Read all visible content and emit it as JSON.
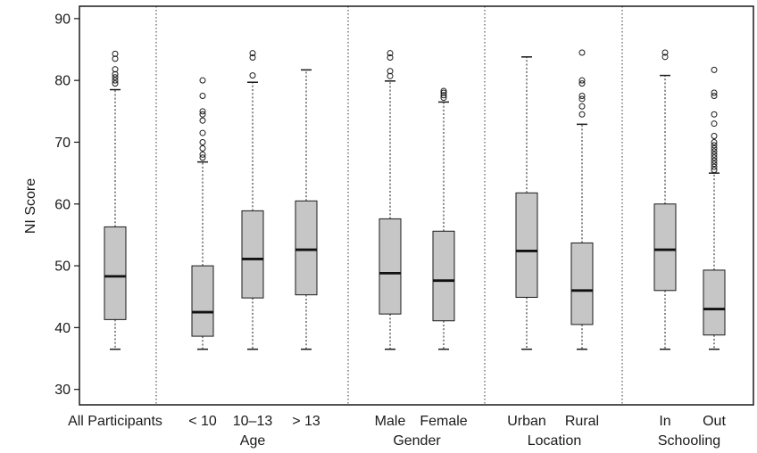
{
  "chart_data": {
    "type": "boxplot",
    "ylabel": "NI Score",
    "ylim": [
      27.5,
      92
    ],
    "yticks": [
      30,
      40,
      50,
      60,
      70,
      80,
      90
    ],
    "grid": false,
    "box_fill": "#c6c6c6",
    "groups": [
      {
        "label": "",
        "boxes": [
          "All Participants"
        ]
      },
      {
        "label": "Age",
        "boxes": [
          "< 10",
          "10–13",
          "> 13"
        ]
      },
      {
        "label": "Gender",
        "boxes": [
          "Male",
          "Female"
        ]
      },
      {
        "label": "Location",
        "boxes": [
          "Urban",
          "Rural"
        ]
      },
      {
        "label": "Schooling",
        "boxes": [
          "In",
          "Out"
        ]
      }
    ],
    "boxes": [
      {
        "label": "All Participants",
        "min": 36.5,
        "q1": 41.3,
        "median": 48.3,
        "q3": 56.3,
        "max": 78.5,
        "outliers": [
          79.5,
          80.0,
          80.5,
          81.0,
          81.8,
          83.5,
          84.3
        ]
      },
      {
        "label": "< 10",
        "min": 36.5,
        "q1": 38.6,
        "median": 42.5,
        "q3": 50.0,
        "max": 66.8,
        "outliers": [
          67.5,
          68.0,
          69.0,
          70.0,
          71.5,
          73.5,
          74.5,
          75.0,
          77.5,
          80.0
        ]
      },
      {
        "label": "10–13",
        "min": 36.5,
        "q1": 44.8,
        "median": 51.1,
        "q3": 58.9,
        "max": 79.7,
        "outliers": [
          80.8,
          83.7,
          84.4
        ]
      },
      {
        "label": "> 13",
        "min": 36.5,
        "q1": 45.3,
        "median": 52.6,
        "q3": 60.5,
        "max": 81.7,
        "outliers": []
      },
      {
        "label": "Male",
        "min": 36.5,
        "q1": 42.2,
        "median": 48.8,
        "q3": 57.6,
        "max": 79.9,
        "outliers": [
          80.7,
          81.5,
          83.7,
          84.4
        ]
      },
      {
        "label": "Female",
        "min": 36.5,
        "q1": 41.1,
        "median": 47.6,
        "q3": 55.6,
        "max": 76.5,
        "outliers": [
          77.2,
          77.6,
          78.0,
          78.3
        ]
      },
      {
        "label": "Urban",
        "min": 36.5,
        "q1": 44.9,
        "median": 52.4,
        "q3": 61.8,
        "max": 83.8,
        "outliers": []
      },
      {
        "label": "Rural",
        "min": 36.5,
        "q1": 40.5,
        "median": 46.0,
        "q3": 53.7,
        "max": 72.9,
        "outliers": [
          74.5,
          75.8,
          77.0,
          77.5,
          79.5,
          80.0,
          84.5
        ]
      },
      {
        "label": "In",
        "min": 36.5,
        "q1": 46.0,
        "median": 52.6,
        "q3": 60.0,
        "max": 80.8,
        "outliers": [
          83.8,
          84.5
        ]
      },
      {
        "label": "Out",
        "min": 36.5,
        "q1": 38.8,
        "median": 43.0,
        "q3": 49.3,
        "max": 65.0,
        "outliers": [
          65.5,
          66.0,
          66.5,
          67.0,
          67.5,
          68.0,
          68.5,
          69.0,
          69.5,
          70.0,
          71.0,
          73.0,
          74.5,
          77.5,
          78.0,
          81.7
        ]
      }
    ]
  }
}
